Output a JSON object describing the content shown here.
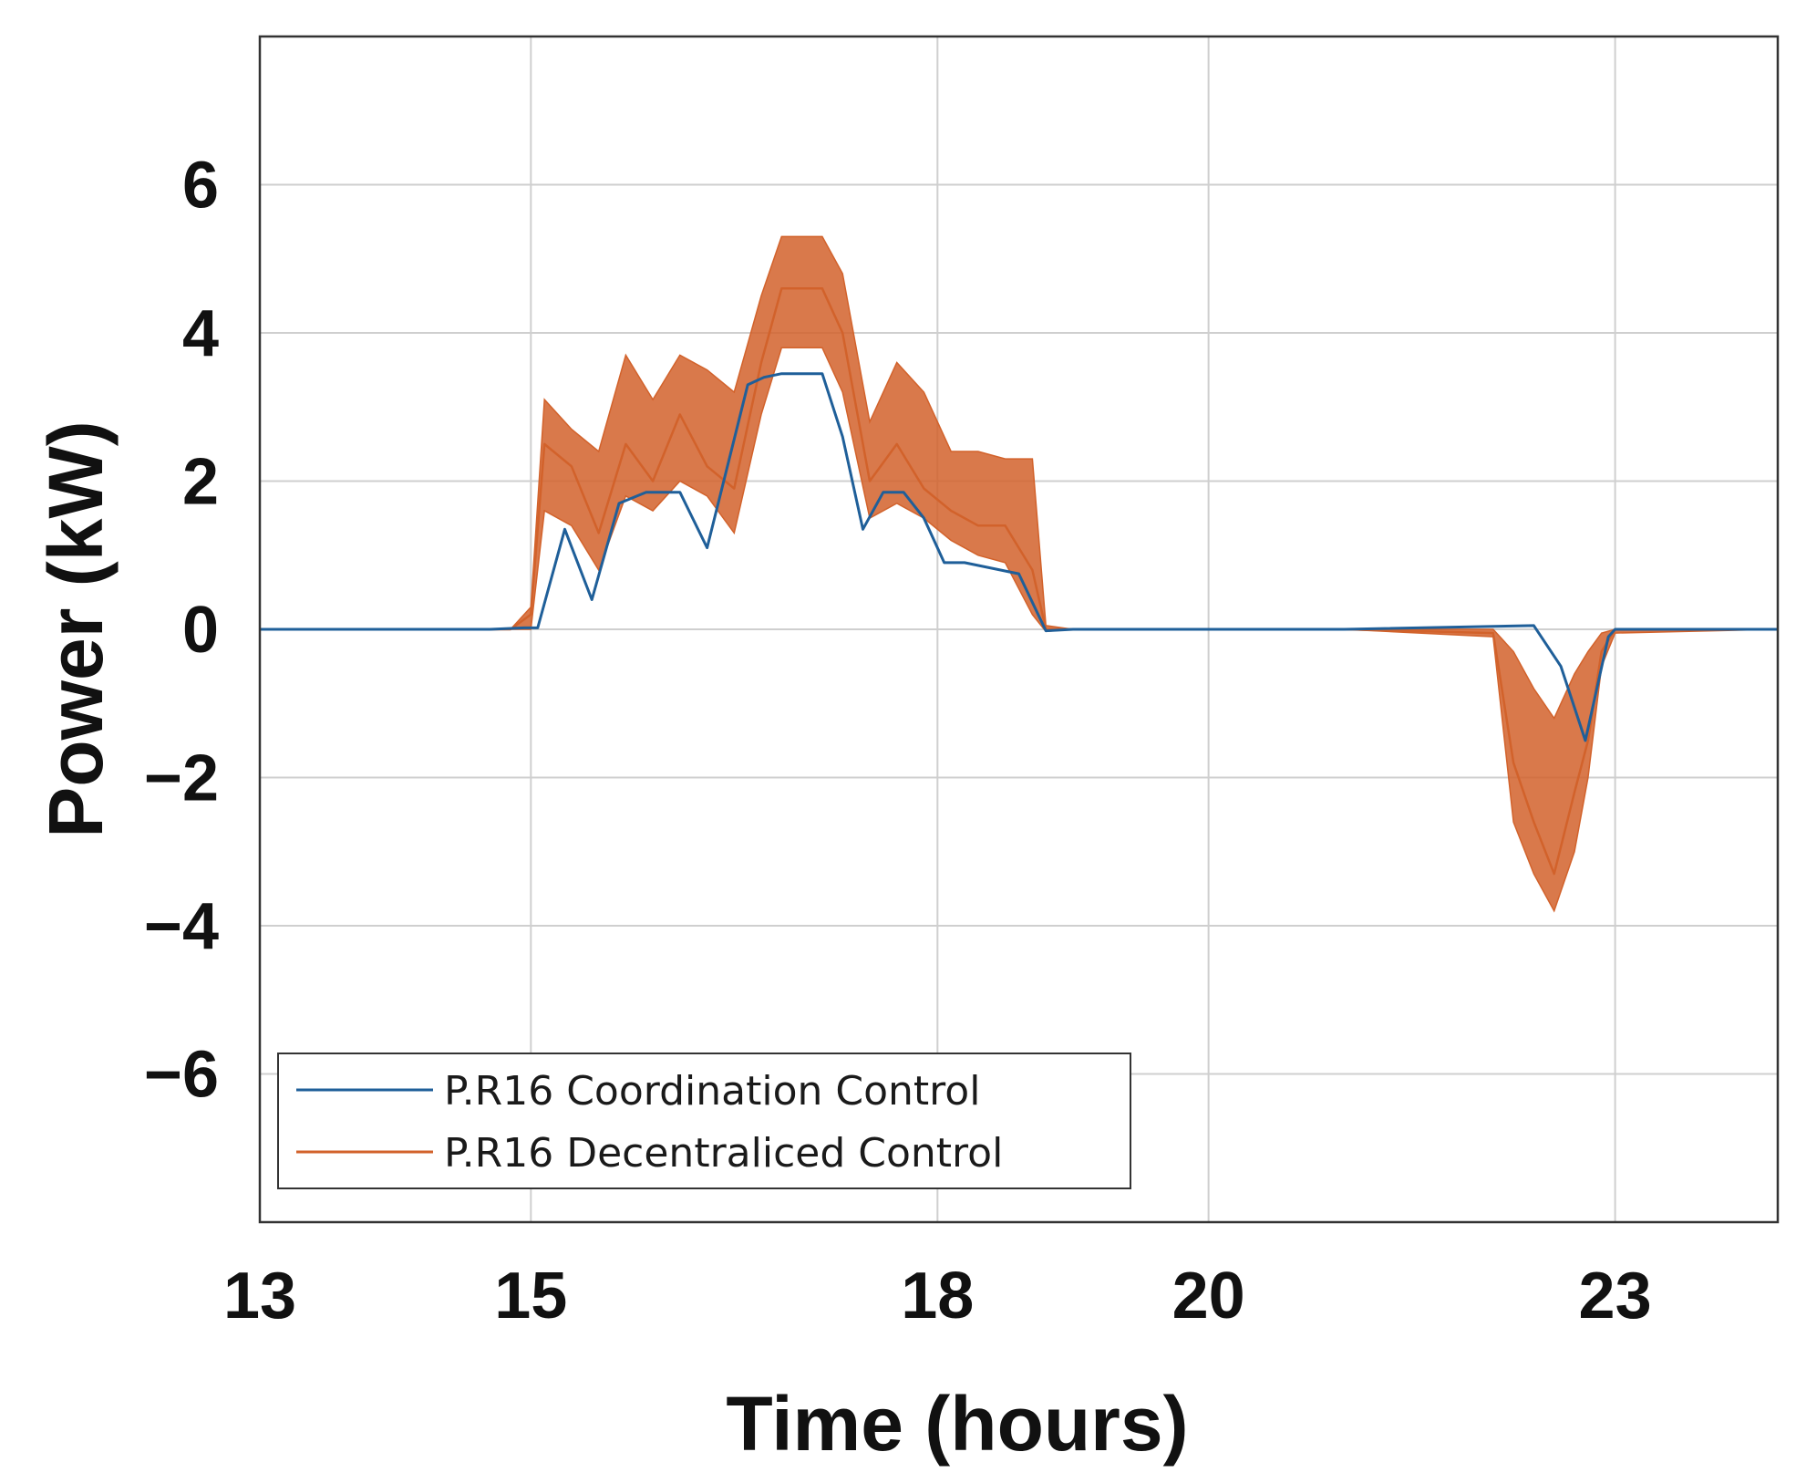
{
  "chart_data": {
    "type": "line",
    "title": "",
    "xlabel": "Time (hours)",
    "ylabel": "Power (kW)",
    "xlim": [
      13,
      24.2
    ],
    "ylim": [
      -8,
      8
    ],
    "x_ticks": [
      13,
      15,
      18,
      20,
      23
    ],
    "x_tick_labels": [
      "13",
      "15",
      "18",
      "20",
      "23"
    ],
    "y_ticks": [
      -6,
      -4,
      -2,
      0,
      2,
      4,
      6
    ],
    "y_tick_labels": [
      "−6",
      "−4",
      "−2",
      "0",
      "2",
      "4",
      "6"
    ],
    "grid": true,
    "legend_position": "bottom-left",
    "series": [
      {
        "name": "P.R16 Coordination Control",
        "color": "#1f5f99",
        "x": [
          13.0,
          14.7,
          14.95,
          15.05,
          15.25,
          15.45,
          15.65,
          15.85,
          16.1,
          16.3,
          16.45,
          16.6,
          16.72,
          16.85,
          16.95,
          17.05,
          17.15,
          17.3,
          17.45,
          17.6,
          17.75,
          17.9,
          18.05,
          18.2,
          18.6,
          18.8,
          19.0,
          21.0,
          22.4,
          22.6,
          22.78,
          22.95,
          23.0,
          24.2
        ],
        "y": [
          0.0,
          0.0,
          0.02,
          0.02,
          1.35,
          0.4,
          1.7,
          1.85,
          1.85,
          1.1,
          2.2,
          3.3,
          3.4,
          3.45,
          3.45,
          3.45,
          3.45,
          2.6,
          1.35,
          1.85,
          1.85,
          1.5,
          0.9,
          0.9,
          0.75,
          -0.02,
          0.0,
          0.0,
          0.05,
          -0.5,
          -1.5,
          -0.1,
          0.0,
          0.0
        ]
      },
      {
        "name": "P.R16 Decentraliced Control",
        "color": "#d2622b",
        "x": [
          13.0,
          14.85,
          15.0,
          15.1,
          15.3,
          15.5,
          15.7,
          15.9,
          16.1,
          16.3,
          16.5,
          16.7,
          16.85,
          17.0,
          17.15,
          17.3,
          17.5,
          17.7,
          17.9,
          18.1,
          18.3,
          18.5,
          18.7,
          18.8,
          19.0,
          21.0,
          22.1,
          22.25,
          22.4,
          22.55,
          22.7,
          22.8,
          22.9,
          23.0,
          24.2
        ],
        "y": [
          0.0,
          0.0,
          0.2,
          2.5,
          2.2,
          1.3,
          2.5,
          2.0,
          2.9,
          2.2,
          1.9,
          3.6,
          4.6,
          4.6,
          4.6,
          4.0,
          2.0,
          2.5,
          1.9,
          1.6,
          1.4,
          1.4,
          0.8,
          0.0,
          0.0,
          0.0,
          -0.05,
          -1.8,
          -2.6,
          -3.3,
          -2.2,
          -1.5,
          -0.3,
          0.0,
          0.0
        ],
        "band_high": [
          0.0,
          0.0,
          0.3,
          3.1,
          2.7,
          2.4,
          3.7,
          3.1,
          3.7,
          3.5,
          3.2,
          4.5,
          5.3,
          5.3,
          5.3,
          4.8,
          2.8,
          3.6,
          3.2,
          2.4,
          2.4,
          2.3,
          2.3,
          0.05,
          0.0,
          0.0,
          0.0,
          -0.3,
          -0.8,
          -1.2,
          -0.6,
          -0.3,
          -0.05,
          0.0,
          0.0
        ],
        "band_low": [
          0.0,
          0.0,
          0.0,
          1.6,
          1.4,
          0.8,
          1.8,
          1.6,
          2.0,
          1.8,
          1.3,
          2.9,
          3.8,
          3.8,
          3.8,
          3.2,
          1.5,
          1.7,
          1.5,
          1.2,
          1.0,
          0.9,
          0.2,
          -0.03,
          0.0,
          0.0,
          -0.1,
          -2.6,
          -3.3,
          -3.8,
          -3.0,
          -2.0,
          -0.5,
          -0.05,
          0.0
        ]
      }
    ]
  }
}
